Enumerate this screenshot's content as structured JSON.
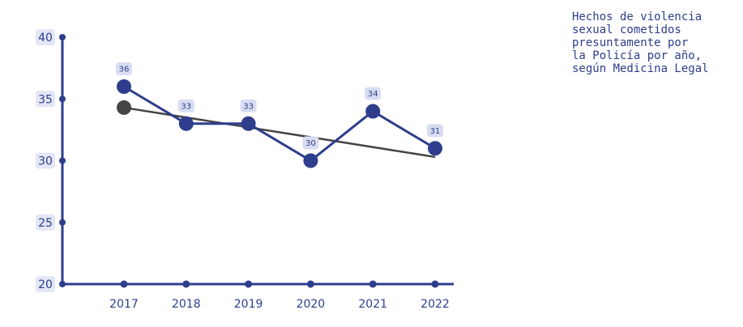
{
  "chart_data": {
    "type": "line",
    "title_lines": [
      "Hechos de violencia",
      "sexual cometidos",
      "presuntamente por",
      "la Policía por año,",
      "según Medicina Legal"
    ],
    "categories": [
      "2017",
      "2018",
      "2019",
      "2020",
      "2021",
      "2022"
    ],
    "series": [
      {
        "color": "#2e3d8c",
        "values": [
          36,
          33,
          33,
          30,
          34,
          31
        ]
      },
      {
        "color": "#444444",
        "values": [
          34.3,
          33.5,
          32.7,
          31.9,
          31.1,
          30.3
        ]
      }
    ],
    "ylim": [
      20,
      40
    ],
    "yticks": [
      20,
      25,
      30,
      35,
      40
    ]
  }
}
